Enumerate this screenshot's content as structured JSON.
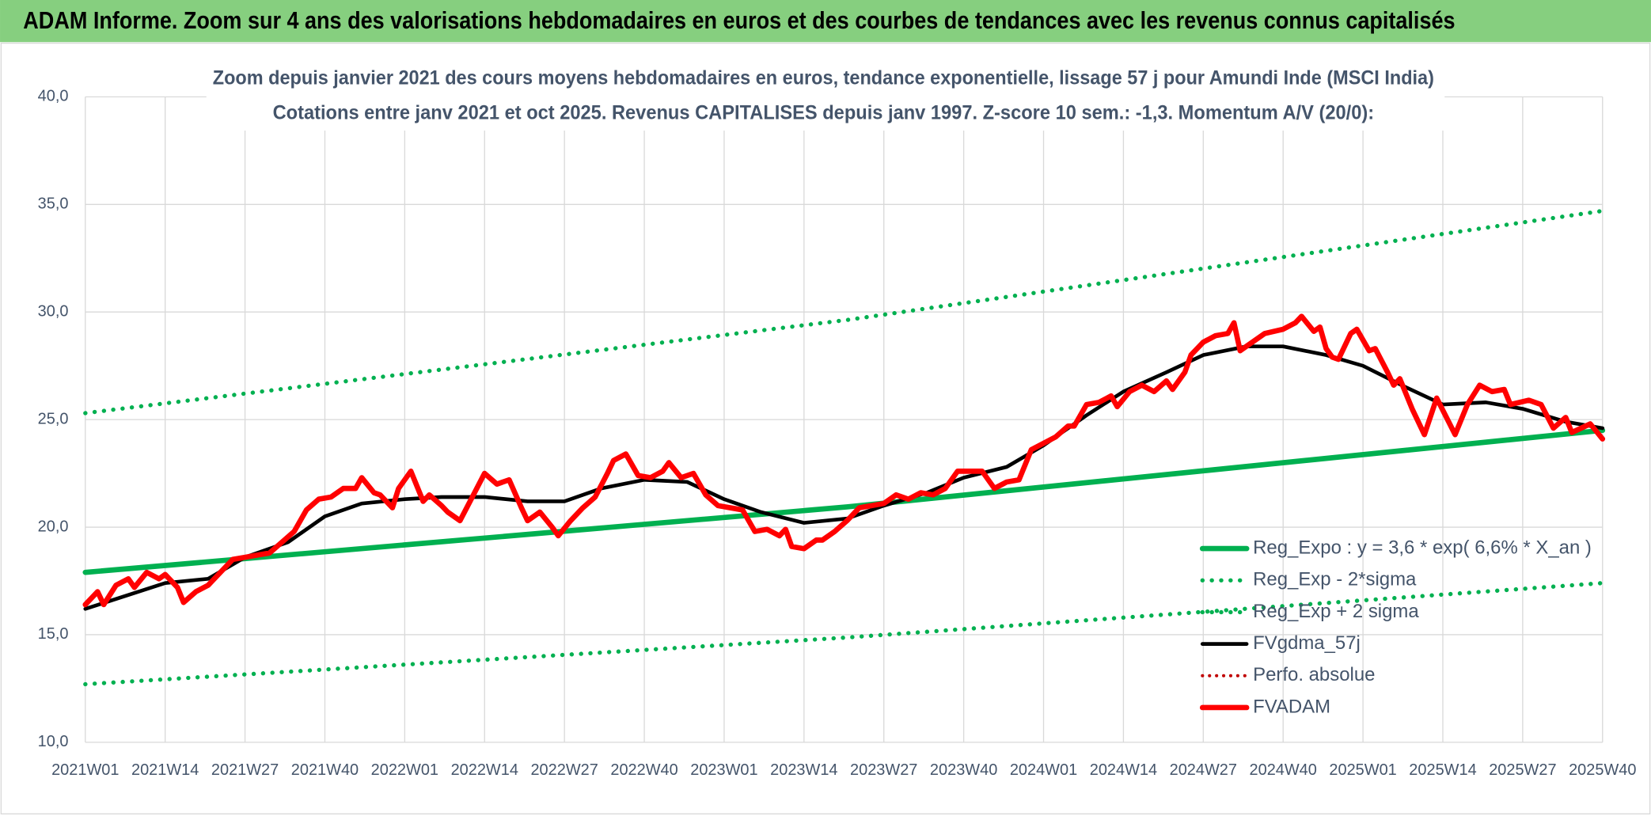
{
  "chart_data": {
    "type": "line",
    "title": "ADAM Informe. Zoom sur 4 ans des valorisations hebdomadaires en euros et des courbes de tendances avec les revenus connus capitalisés",
    "subtitle": [
      "Zoom depuis janvier 2021 des cours moyens hebdomadaires en euros, tendance exponentielle, lissage 57 j pour Amundi Inde (MSCI India)",
      "Cotations entre janv 2021 et oct 2025. Revenus CAPITALISES depuis janv 1997. Z-score 10 sem.: -1,3. Momentum A/V (20/0):"
    ],
    "xlim": [
      0,
      247
    ],
    "xticks": [
      {
        "value": 0,
        "label": "2021W01"
      },
      {
        "value": 13,
        "label": "2021W14"
      },
      {
        "value": 26,
        "label": "2021W27"
      },
      {
        "value": 39,
        "label": "2021W40"
      },
      {
        "value": 52,
        "label": "2022W01"
      },
      {
        "value": 65,
        "label": "2022W14"
      },
      {
        "value": 78,
        "label": "2022W27"
      },
      {
        "value": 91,
        "label": "2022W40"
      },
      {
        "value": 104,
        "label": "2023W01"
      },
      {
        "value": 117,
        "label": "2023W14"
      },
      {
        "value": 130,
        "label": "2023W27"
      },
      {
        "value": 143,
        "label": "2023W40"
      },
      {
        "value": 156,
        "label": "2024W01"
      },
      {
        "value": 169,
        "label": "2024W14"
      },
      {
        "value": 182,
        "label": "2024W27"
      },
      {
        "value": 195,
        "label": "2024W40"
      },
      {
        "value": 208,
        "label": "2025W01"
      },
      {
        "value": 221,
        "label": "2025W14"
      },
      {
        "value": 234,
        "label": "2025W27"
      },
      {
        "value": 247,
        "label": "2025W40"
      }
    ],
    "ylim": [
      10,
      40
    ],
    "yticks": [
      {
        "value": 10,
        "label": "10,0"
      },
      {
        "value": 15,
        "label": "15,0"
      },
      {
        "value": 20,
        "label": "20,0"
      },
      {
        "value": 25,
        "label": "25,0"
      },
      {
        "value": 30,
        "label": "30,0"
      },
      {
        "value": 35,
        "label": "35,0"
      },
      {
        "value": 40,
        "label": "40,0"
      }
    ],
    "grid": true,
    "legend": "lower right",
    "series": [
      {
        "name": "Reg_Expo : y = 3,6 * exp( 6,6% *  X_an )",
        "color": "#00b050",
        "style": "solid",
        "width": 5,
        "x": [
          0,
          124,
          247
        ],
        "values": [
          17.9,
          20.94,
          24.5
        ]
      },
      {
        "name": "Reg_Exp - 2*sigma",
        "color": "#00b050",
        "style": "dotted",
        "width": 4,
        "x": [
          0,
          124,
          247
        ],
        "values": [
          12.7,
          14.87,
          17.4
        ]
      },
      {
        "name": "Reg_Exp + 2 sigma",
        "color": "#00b050",
        "style": "dotted",
        "width": 4,
        "x": [
          0,
          124,
          247
        ],
        "values": [
          25.3,
          29.63,
          34.7
        ]
      },
      {
        "name": "FVgdma_57j",
        "color": "#000000",
        "style": "solid",
        "width": 3.5,
        "x": [
          0,
          13,
          20,
          26,
          33,
          39,
          45,
          52,
          58,
          65,
          72,
          78,
          84,
          91,
          98,
          104,
          110,
          117,
          124,
          130,
          137,
          143,
          150,
          156,
          163,
          169,
          176,
          182,
          189,
          195,
          202,
          208,
          215,
          221,
          228,
          234,
          241,
          247
        ],
        "values": [
          16.2,
          17.4,
          17.6,
          18.6,
          19.3,
          20.5,
          21.1,
          21.3,
          21.4,
          21.4,
          21.2,
          21.2,
          21.8,
          22.2,
          22.1,
          21.3,
          20.7,
          20.2,
          20.4,
          21.0,
          21.6,
          22.3,
          22.8,
          23.8,
          25.2,
          26.3,
          27.2,
          28.0,
          28.4,
          28.4,
          28.0,
          27.5,
          26.5,
          25.7,
          25.8,
          25.5,
          24.9,
          24.6
        ]
      },
      {
        "name": "Perfo. absolue",
        "color": "#c00000",
        "style": "dotted",
        "width": 3,
        "x": [],
        "values": []
      },
      {
        "name": "FVADAM",
        "color": "#ff0000",
        "style": "solid",
        "width": 5,
        "x": [
          0,
          2,
          3,
          5,
          7,
          8,
          10,
          12,
          13,
          15,
          16,
          18,
          20,
          22,
          24,
          26,
          28,
          30,
          32,
          34,
          36,
          38,
          40,
          42,
          44,
          45,
          47,
          48,
          50,
          51,
          53,
          55,
          56,
          58,
          59,
          61,
          63,
          65,
          67,
          69,
          71,
          72,
          74,
          76,
          77,
          79,
          81,
          83,
          85,
          86,
          88,
          90,
          92,
          94,
          95,
          97,
          99,
          101,
          103,
          105,
          107,
          109,
          111,
          113,
          114,
          115,
          117,
          119,
          120,
          122,
          124,
          126,
          128,
          130,
          132,
          134,
          136,
          138,
          140,
          142,
          144,
          146,
          148,
          150,
          152,
          154,
          156,
          158,
          160,
          161,
          163,
          165,
          167,
          168,
          170,
          172,
          174,
          176,
          177,
          179,
          180,
          182,
          184,
          186,
          187,
          188,
          190,
          192,
          195,
          197,
          198,
          200,
          201,
          202,
          203,
          204,
          206,
          207,
          208,
          209,
          210,
          212,
          213,
          214,
          216,
          218,
          220,
          223,
          225,
          227,
          229,
          231,
          232,
          235,
          237,
          239,
          241,
          242,
          245,
          247
        ],
        "values": [
          16.4,
          17.0,
          16.4,
          17.3,
          17.6,
          17.2,
          17.9,
          17.6,
          17.8,
          17.2,
          16.5,
          17.0,
          17.3,
          17.9,
          18.5,
          18.6,
          18.7,
          18.8,
          19.3,
          19.8,
          20.8,
          21.3,
          21.4,
          21.8,
          21.8,
          22.3,
          21.6,
          21.5,
          20.9,
          21.8,
          22.6,
          21.2,
          21.5,
          21.0,
          20.7,
          20.3,
          21.4,
          22.5,
          22.0,
          22.2,
          20.9,
          20.3,
          20.7,
          20.0,
          19.6,
          20.3,
          20.9,
          21.4,
          22.5,
          23.1,
          23.4,
          22.4,
          22.3,
          22.6,
          23.0,
          22.3,
          22.5,
          21.5,
          21.0,
          20.9,
          20.8,
          19.8,
          19.9,
          19.6,
          19.9,
          19.1,
          19.0,
          19.4,
          19.4,
          19.8,
          20.3,
          20.9,
          21.0,
          21.1,
          21.5,
          21.3,
          21.6,
          21.5,
          21.8,
          22.6,
          22.6,
          22.6,
          21.8,
          22.1,
          22.2,
          23.6,
          23.9,
          24.2,
          24.7,
          24.7,
          25.7,
          25.8,
          26.1,
          25.6,
          26.3,
          26.6,
          26.3,
          26.8,
          26.4,
          27.2,
          28.0,
          28.6,
          28.9,
          29.0,
          29.5,
          28.2,
          28.6,
          29.0,
          29.2,
          29.5,
          29.8,
          29.1,
          29.3,
          28.3,
          27.9,
          27.8,
          29.0,
          29.2,
          28.7,
          28.2,
          28.3,
          27.2,
          26.6,
          26.9,
          25.5,
          24.3,
          26.0,
          24.3,
          25.7,
          26.6,
          26.3,
          26.4,
          25.7,
          25.9,
          25.7,
          24.6,
          25.1,
          24.4,
          24.8,
          24.1
        ]
      }
    ]
  }
}
